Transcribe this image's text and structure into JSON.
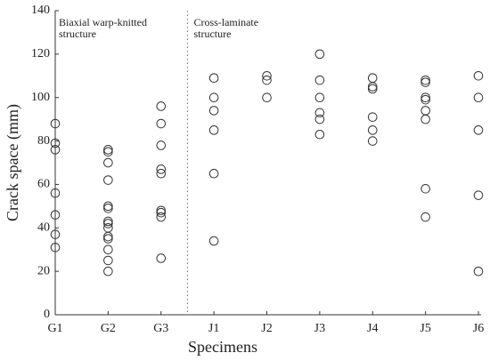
{
  "chart_data": {
    "type": "scatter",
    "categories": [
      "G1",
      "G2",
      "G3",
      "J1",
      "J2",
      "J3",
      "J4",
      "J5",
      "J6"
    ],
    "values": [
      [
        88,
        79,
        76,
        56,
        46,
        37,
        31
      ],
      [
        76,
        75,
        70,
        62,
        50,
        49,
        43,
        42,
        40,
        36,
        35,
        30,
        25,
        20
      ],
      [
        96,
        88,
        78,
        67,
        65,
        48,
        47,
        45,
        26
      ],
      [
        109,
        100,
        94,
        85,
        65,
        34
      ],
      [
        110,
        108,
        100
      ],
      [
        120,
        108,
        100,
        93,
        90,
        83
      ],
      [
        109,
        105,
        104,
        91,
        85,
        80
      ],
      [
        108,
        107,
        100,
        99,
        94,
        90,
        58,
        45
      ],
      [
        110,
        100,
        85,
        55,
        20
      ]
    ],
    "color": "#333333",
    "xlabel": "Specimens",
    "ylabel": "Crack space (mm)",
    "ylim": [
      0,
      140
    ],
    "yticks": [
      0,
      20,
      40,
      60,
      80,
      100,
      120,
      140
    ],
    "annotations": [
      [
        "Biaxial warp-knitted",
        "structure"
      ],
      [
        "Cross-laminate",
        "structure"
      ]
    ]
  }
}
